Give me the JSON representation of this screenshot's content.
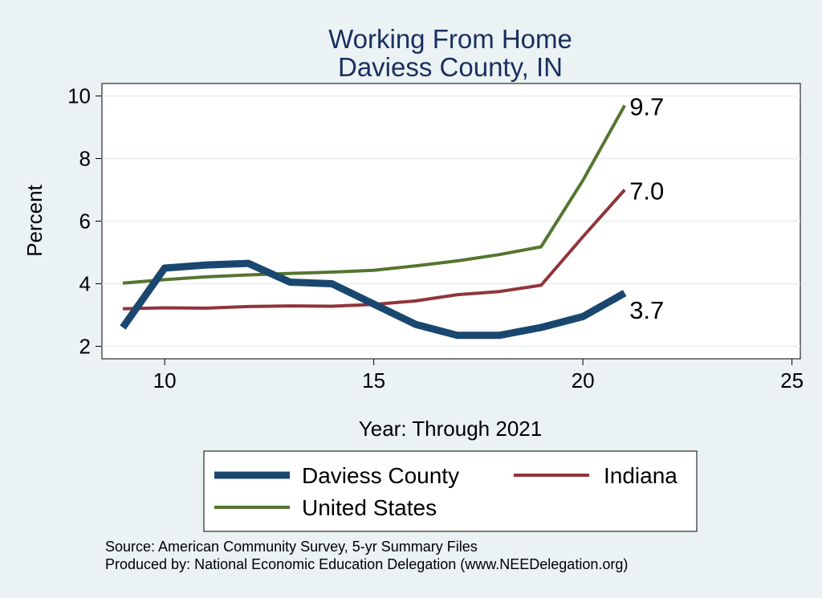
{
  "chart_data": {
    "type": "line",
    "title": "Working From Home",
    "subtitle": "Daviess County, IN",
    "xlabel": "Year: Through 2021",
    "ylabel": "Percent",
    "xlim": [
      8.5,
      25.2
    ],
    "ylim": [
      1.6,
      10.4
    ],
    "xticks": [
      10,
      15,
      20,
      25
    ],
    "yticks": [
      2,
      4,
      6,
      8,
      10
    ],
    "grid": true,
    "series": [
      {
        "name": "Daviess County",
        "color": "#1a476f",
        "width": "thick",
        "x": [
          9,
          10,
          11,
          12,
          13,
          14,
          15,
          16,
          17,
          18,
          19,
          20,
          21
        ],
        "values": [
          2.6,
          4.5,
          4.6,
          4.65,
          4.05,
          4.0,
          3.35,
          2.7,
          2.35,
          2.35,
          2.6,
          2.95,
          3.7
        ],
        "end_label": "3.7"
      },
      {
        "name": "Indiana",
        "color": "#90353b",
        "width": "normal",
        "x": [
          9,
          10,
          11,
          12,
          13,
          14,
          15,
          16,
          17,
          18,
          19,
          20,
          21
        ],
        "values": [
          3.2,
          3.23,
          3.22,
          3.27,
          3.29,
          3.28,
          3.34,
          3.45,
          3.65,
          3.75,
          3.95,
          5.5,
          7.0
        ],
        "end_label": "7.0"
      },
      {
        "name": "United States",
        "color": "#55752f",
        "width": "normal",
        "x": [
          9,
          10,
          11,
          12,
          13,
          14,
          15,
          16,
          17,
          18,
          19,
          20,
          21
        ],
        "values": [
          4.02,
          4.13,
          4.22,
          4.28,
          4.33,
          4.37,
          4.43,
          4.57,
          4.73,
          4.93,
          5.18,
          7.3,
          9.7
        ],
        "end_label": "9.7"
      }
    ],
    "legend": {
      "position": "bottom",
      "entries": [
        "Daviess County",
        "Indiana",
        "United States"
      ]
    }
  },
  "footer": {
    "source": "Source: American Community Survey, 5-yr Summary Files",
    "produced_by": "Produced by: National Economic Education Delegation (www.NEEDelegation.org)"
  },
  "colors": {
    "background": "#eaf2f3",
    "plot_background": "#ffffff",
    "title": "#1a2f5f",
    "grid": "#e8eeef"
  }
}
